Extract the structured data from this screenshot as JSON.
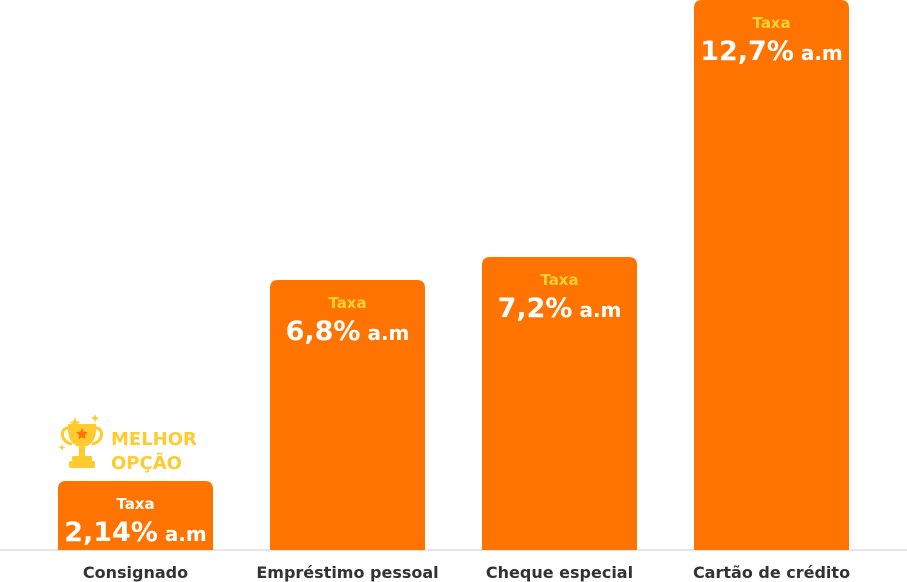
{
  "colors": {
    "bar": "#ff7300",
    "rate_label_highlight": "#ffd233",
    "rate_label_plain": "#ffffff",
    "badge": "#ffcb2e",
    "category_text": "#333333",
    "baseline": "#e6e6e6"
  },
  "badge": {
    "icon": "trophy-icon",
    "line1": "MELHOR",
    "line2": "OPÇÃO"
  },
  "chart_data": {
    "type": "bar",
    "categories": [
      "Consignado",
      "Empréstimo pessoal",
      "Cheque especial",
      "Cartão de crédito"
    ],
    "values": [
      2.14,
      6.8,
      7.2,
      12.7
    ],
    "value_labels": [
      "2,14%",
      "6,8%",
      "7,2%",
      "12,7%"
    ],
    "value_unit": "a.m",
    "bar_caption": "Taxa",
    "best_option_index": 0,
    "grid": false
  }
}
